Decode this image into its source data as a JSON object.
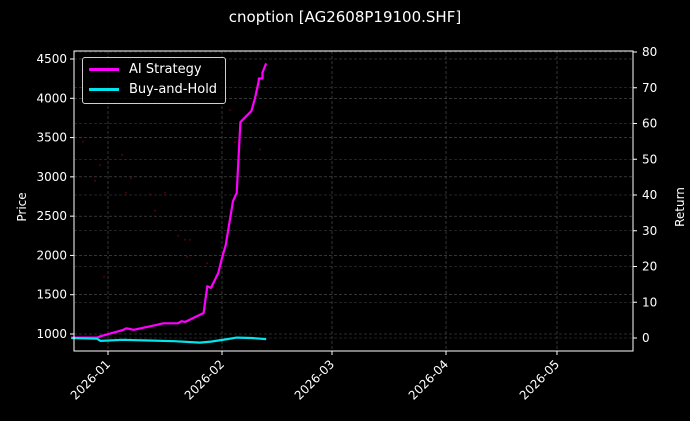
{
  "chart_data": {
    "type": "line",
    "title": "cnoption [AG2608P19100.SHF]",
    "xlabel": "",
    "ylabel_left": "Price",
    "ylabel_right": "Return",
    "x_ticks": [
      "2026-01",
      "2026-02",
      "2026-03",
      "2026-04",
      "2026-05"
    ],
    "y_left_ticks": [
      1000,
      1500,
      2000,
      2500,
      3000,
      3500,
      4000,
      4500
    ],
    "y_right_ticks": [
      0,
      10,
      20,
      30,
      40,
      50,
      60,
      70,
      80
    ],
    "ylim_left": [
      780,
      4580
    ],
    "ylim_right": [
      -3.6,
      80.4
    ],
    "grid": true,
    "legend_position": "upper left",
    "series": [
      {
        "name": "AI Strategy",
        "axis": "right",
        "color": "#ff00ff",
        "x": [
          "2025-12-22",
          "2025-12-29",
          "2025-12-30",
          "2026-01-05",
          "2026-01-06",
          "2026-01-08",
          "2026-01-14",
          "2026-01-16",
          "2026-01-20",
          "2026-01-21",
          "2026-01-22",
          "2026-01-27",
          "2026-01-28",
          "2026-01-29",
          "2026-01-31",
          "2026-02-01",
          "2026-02-02",
          "2026-02-03",
          "2026-02-04",
          "2026-02-05",
          "2026-02-06",
          "2026-02-09",
          "2026-02-10",
          "2026-02-11",
          "2026-02-11",
          "2026-02-12",
          "2026-02-12",
          "2026-02-13"
        ],
        "values": [
          0.1,
          0.1,
          0.5,
          2.2,
          2.7,
          2.3,
          3.6,
          4.1,
          4.1,
          4.7,
          4.5,
          7.0,
          14.5,
          14.0,
          18.2,
          22.4,
          26.0,
          32.2,
          38.3,
          40.6,
          60.4,
          63.5,
          67.2,
          72.0,
          72.6,
          72.6,
          74.3,
          76.8
        ]
      },
      {
        "name": "Buy-and-Hold",
        "axis": "right",
        "color": "#00e5ee",
        "x": [
          "2025-12-22",
          "2025-12-29",
          "2025-12-30",
          "2026-01-05",
          "2026-01-12",
          "2026-01-19",
          "2026-01-26",
          "2026-01-29",
          "2026-02-02",
          "2026-02-05",
          "2026-02-09",
          "2026-02-13"
        ],
        "values": [
          0.0,
          -0.2,
          -0.8,
          -0.5,
          -0.7,
          -0.9,
          -1.3,
          -1.0,
          -0.4,
          0.1,
          0.0,
          -0.3
        ]
      }
    ],
    "scatter_noise": {
      "color": "#5a0000",
      "note": "faint dark-red price scatter markers on left axis",
      "approx_price_points": [
        3450,
        3150,
        2950,
        3280,
        2800,
        2980,
        2570,
        2780,
        2800,
        2250,
        2200,
        2200,
        1980,
        1730,
        1900,
        3850,
        3440,
        3350
      ]
    }
  },
  "legend": {
    "items": [
      {
        "label": "AI Strategy",
        "color": "#ff00ff"
      },
      {
        "label": "Buy-and-Hold",
        "color": "#00e5ee"
      }
    ]
  }
}
